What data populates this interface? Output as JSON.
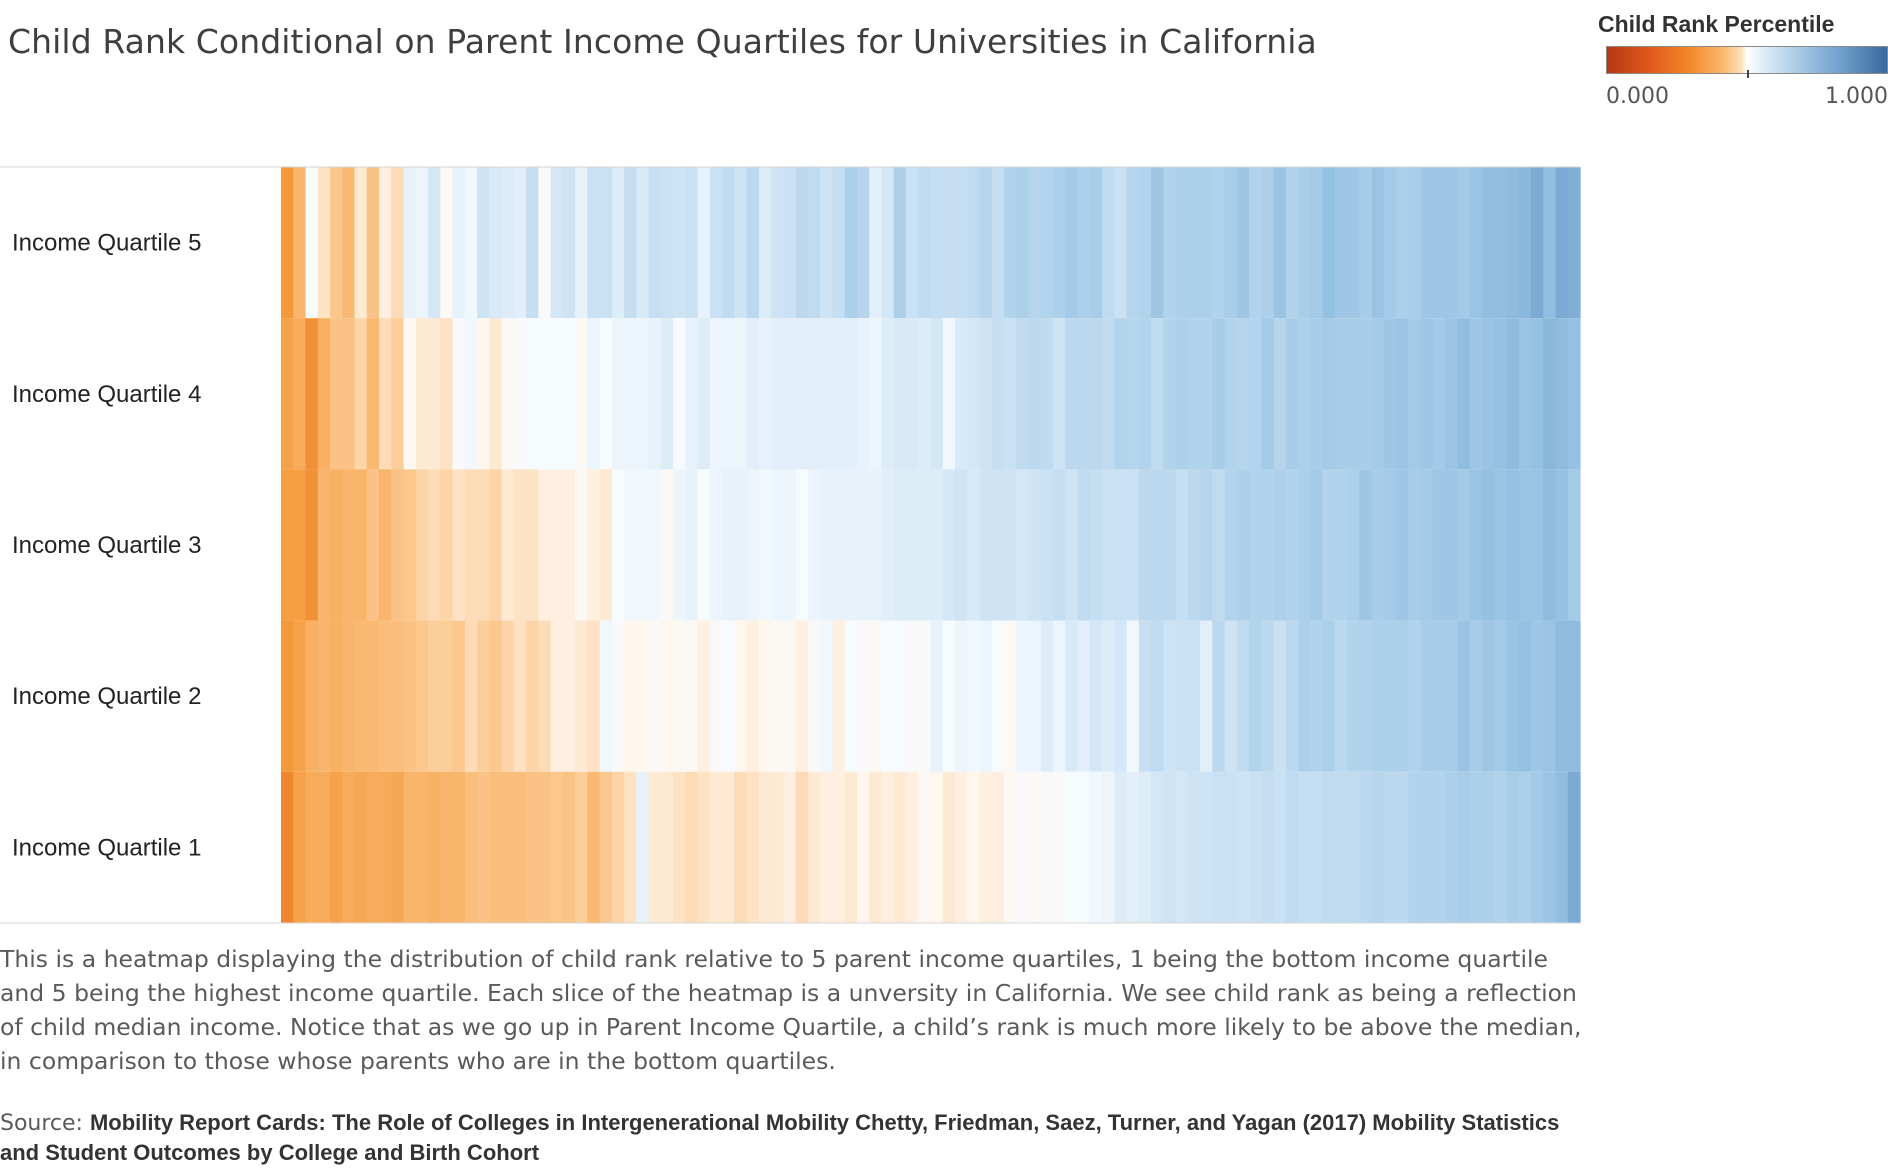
{
  "title": "Child Rank Conditional on Parent Income Quartiles for Universities in California",
  "legend": {
    "title": "Child Rank Percentile",
    "min_label": "0.000",
    "max_label": "1.000",
    "colors": {
      "low": "#b53810",
      "mid_low": "#f48a2b",
      "mid": "#ffffff",
      "mid_high": "#a9cbe6",
      "high": "#3a689d"
    }
  },
  "description": "This is a heatmap displaying the distribution of child rank relative to 5 parent income quartiles, 1 being the bottom income quartile and 5 being the highest income quartile. Each slice of the heatmap is a unversity in California. We see child rank as being a reflection of child median income. Notice that as we go up in Parent Income Quartile, a child’s rank is much more likely to be above the median, in comparison to those whose parents who are in the bottom quartiles.",
  "source": {
    "prefix": "Source: ",
    "text": "Mobility Report Cards: The Role of Colleges in Intergenerational Mobility Chetty, Friedman, Saez, Turner, and Yagan (2017) Mobility Statistics and Student Outcomes by College and Birth Cohort"
  },
  "chart_data": {
    "type": "heatmap",
    "title": "Child Rank Conditional on Parent Income Quartiles for Universities in California",
    "rows": [
      "Income Quartile 5",
      "Income Quartile 4",
      "Income Quartile 3",
      "Income Quartile 2",
      "Income Quartile 1"
    ],
    "color_range": [
      0,
      1
    ],
    "grid": false,
    "legend_position": "top-right",
    "values": [
      [
        0.32,
        0.38,
        0.52,
        0.46,
        0.42,
        0.39,
        0.47,
        0.41,
        0.48,
        0.45,
        0.55,
        0.54,
        0.59,
        0.5,
        0.55,
        0.53,
        0.6,
        0.58,
        0.57,
        0.56,
        0.62,
        0.51,
        0.59,
        0.6,
        0.55,
        0.61,
        0.61,
        0.57,
        0.62,
        0.58,
        0.62,
        0.61,
        0.6,
        0.61,
        0.55,
        0.61,
        0.63,
        0.6,
        0.64,
        0.57,
        0.6,
        0.61,
        0.64,
        0.63,
        0.6,
        0.62,
        0.67,
        0.65,
        0.56,
        0.59,
        0.67,
        0.61,
        0.63,
        0.62,
        0.62,
        0.62,
        0.63,
        0.65,
        0.62,
        0.66,
        0.67,
        0.65,
        0.66,
        0.67,
        0.69,
        0.67,
        0.68,
        0.63,
        0.61,
        0.65,
        0.66,
        0.7,
        0.66,
        0.67,
        0.67,
        0.67,
        0.66,
        0.68,
        0.7,
        0.66,
        0.67,
        0.71,
        0.66,
        0.68,
        0.69,
        0.72,
        0.7,
        0.7,
        0.68,
        0.71,
        0.69,
        0.67,
        0.68,
        0.7,
        0.7,
        0.7,
        0.69,
        0.71,
        0.73,
        0.73,
        0.74,
        0.75,
        0.79,
        0.73,
        0.79,
        0.78
      ],
      [
        0.34,
        0.36,
        0.3,
        0.37,
        0.41,
        0.41,
        0.44,
        0.39,
        0.45,
        0.43,
        0.5,
        0.47,
        0.47,
        0.46,
        0.51,
        0.53,
        0.49,
        0.47,
        0.5,
        0.51,
        0.52,
        0.52,
        0.52,
        0.52,
        0.5,
        0.54,
        0.52,
        0.54,
        0.54,
        0.54,
        0.55,
        0.57,
        0.52,
        0.55,
        0.57,
        0.54,
        0.54,
        0.54,
        0.56,
        0.55,
        0.56,
        0.56,
        0.56,
        0.56,
        0.56,
        0.56,
        0.56,
        0.55,
        0.54,
        0.57,
        0.58,
        0.58,
        0.57,
        0.59,
        0.53,
        0.58,
        0.59,
        0.6,
        0.62,
        0.61,
        0.63,
        0.64,
        0.63,
        0.6,
        0.64,
        0.64,
        0.64,
        0.63,
        0.66,
        0.65,
        0.66,
        0.63,
        0.66,
        0.67,
        0.66,
        0.66,
        0.68,
        0.66,
        0.65,
        0.66,
        0.69,
        0.65,
        0.68,
        0.67,
        0.68,
        0.69,
        0.68,
        0.68,
        0.68,
        0.69,
        0.7,
        0.71,
        0.69,
        0.7,
        0.69,
        0.71,
        0.73,
        0.7,
        0.71,
        0.72,
        0.74,
        0.71,
        0.72,
        0.75,
        0.74,
        0.72
      ],
      [
        0.33,
        0.33,
        0.3,
        0.38,
        0.37,
        0.38,
        0.38,
        0.41,
        0.38,
        0.41,
        0.42,
        0.44,
        0.45,
        0.44,
        0.46,
        0.45,
        0.45,
        0.44,
        0.47,
        0.46,
        0.46,
        0.48,
        0.48,
        0.48,
        0.5,
        0.48,
        0.47,
        0.52,
        0.53,
        0.53,
        0.53,
        0.5,
        0.54,
        0.55,
        0.52,
        0.54,
        0.55,
        0.55,
        0.54,
        0.53,
        0.54,
        0.54,
        0.52,
        0.54,
        0.55,
        0.55,
        0.55,
        0.55,
        0.55,
        0.56,
        0.57,
        0.57,
        0.57,
        0.57,
        0.59,
        0.6,
        0.58,
        0.6,
        0.6,
        0.6,
        0.59,
        0.6,
        0.61,
        0.62,
        0.6,
        0.63,
        0.62,
        0.61,
        0.61,
        0.61,
        0.64,
        0.64,
        0.64,
        0.62,
        0.64,
        0.65,
        0.63,
        0.66,
        0.67,
        0.66,
        0.66,
        0.67,
        0.66,
        0.67,
        0.69,
        0.66,
        0.66,
        0.67,
        0.7,
        0.68,
        0.69,
        0.7,
        0.68,
        0.69,
        0.7,
        0.7,
        0.69,
        0.71,
        0.72,
        0.71,
        0.72,
        0.71,
        0.71,
        0.74,
        0.72,
        0.69
      ],
      [
        0.32,
        0.34,
        0.37,
        0.38,
        0.37,
        0.38,
        0.39,
        0.39,
        0.4,
        0.4,
        0.41,
        0.42,
        0.43,
        0.43,
        0.42,
        0.45,
        0.43,
        0.42,
        0.44,
        0.46,
        0.44,
        0.45,
        0.48,
        0.48,
        0.47,
        0.46,
        0.53,
        0.51,
        0.49,
        0.49,
        0.51,
        0.49,
        0.5,
        0.5,
        0.48,
        0.51,
        0.52,
        0.49,
        0.48,
        0.49,
        0.5,
        0.5,
        0.48,
        0.51,
        0.53,
        0.48,
        0.52,
        0.51,
        0.5,
        0.52,
        0.52,
        0.51,
        0.51,
        0.55,
        0.52,
        0.54,
        0.53,
        0.54,
        0.52,
        0.5,
        0.54,
        0.54,
        0.57,
        0.54,
        0.58,
        0.56,
        0.59,
        0.57,
        0.59,
        0.53,
        0.62,
        0.63,
        0.6,
        0.61,
        0.61,
        0.56,
        0.64,
        0.6,
        0.63,
        0.66,
        0.64,
        0.61,
        0.64,
        0.67,
        0.66,
        0.67,
        0.64,
        0.66,
        0.66,
        0.67,
        0.67,
        0.67,
        0.66,
        0.68,
        0.68,
        0.68,
        0.71,
        0.68,
        0.7,
        0.69,
        0.71,
        0.72,
        0.7,
        0.71,
        0.74,
        0.74
      ],
      [
        0.28,
        0.34,
        0.36,
        0.36,
        0.34,
        0.36,
        0.35,
        0.36,
        0.36,
        0.35,
        0.38,
        0.38,
        0.37,
        0.38,
        0.38,
        0.4,
        0.41,
        0.4,
        0.4,
        0.4,
        0.41,
        0.41,
        0.42,
        0.41,
        0.43,
        0.39,
        0.42,
        0.44,
        0.46,
        0.55,
        0.47,
        0.47,
        0.46,
        0.45,
        0.46,
        0.47,
        0.47,
        0.45,
        0.46,
        0.47,
        0.47,
        0.48,
        0.45,
        0.47,
        0.48,
        0.48,
        0.47,
        0.49,
        0.47,
        0.48,
        0.47,
        0.48,
        0.5,
        0.49,
        0.47,
        0.48,
        0.49,
        0.48,
        0.48,
        0.5,
        0.51,
        0.5,
        0.51,
        0.51,
        0.52,
        0.52,
        0.53,
        0.54,
        0.57,
        0.56,
        0.57,
        0.59,
        0.6,
        0.59,
        0.6,
        0.6,
        0.61,
        0.61,
        0.6,
        0.61,
        0.62,
        0.61,
        0.63,
        0.62,
        0.62,
        0.63,
        0.63,
        0.63,
        0.64,
        0.65,
        0.64,
        0.64,
        0.66,
        0.66,
        0.66,
        0.67,
        0.68,
        0.67,
        0.67,
        0.66,
        0.68,
        0.67,
        0.69,
        0.71,
        0.73,
        0.79
      ]
    ]
  }
}
